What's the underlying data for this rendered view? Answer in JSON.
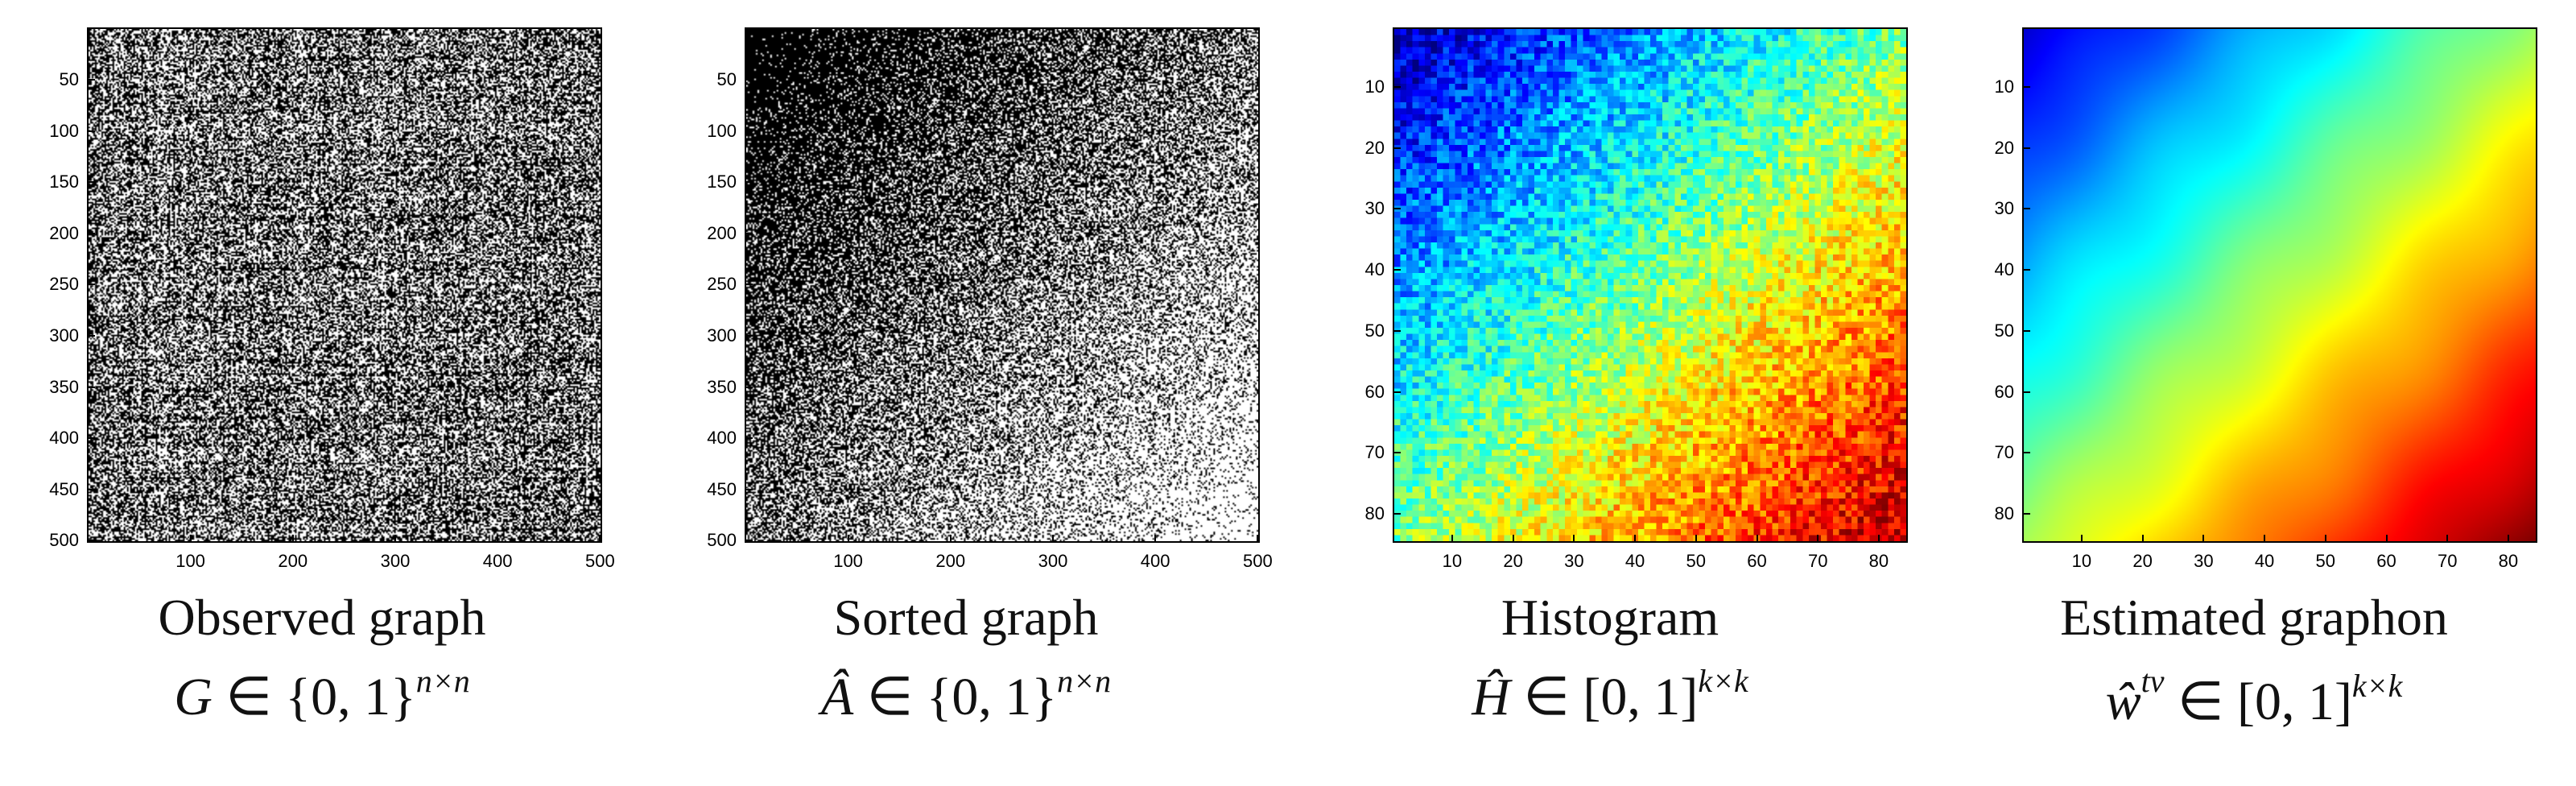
{
  "panels": [
    {
      "caption": "Observed graph",
      "formula_var": "G",
      "formula_rel": " ∈ {0, 1}",
      "formula_sup": "n×n",
      "yticks": [
        "50",
        "100",
        "150",
        "200",
        "250",
        "300",
        "350",
        "400",
        "450",
        "500"
      ],
      "xticks": [
        "100",
        "200",
        "300",
        "400",
        "500"
      ],
      "axis_max": 500,
      "colormap": "gray",
      "pattern": "random-uniform"
    },
    {
      "caption": "Sorted graph",
      "formula_var": "Â",
      "formula_rel": " ∈ {0, 1}",
      "formula_sup": "n×n",
      "yticks": [
        "50",
        "100",
        "150",
        "200",
        "250",
        "300",
        "350",
        "400",
        "450",
        "500"
      ],
      "xticks": [
        "100",
        "200",
        "300",
        "400",
        "500"
      ],
      "axis_max": 500,
      "colormap": "gray",
      "pattern": "diagonal-gradient"
    },
    {
      "caption": "Histogram",
      "formula_var": "Ĥ",
      "formula_rel": " ∈ [0, 1]",
      "formula_sup": "k×k",
      "yticks": [
        "10",
        "20",
        "30",
        "40",
        "50",
        "60",
        "70",
        "80"
      ],
      "xticks": [
        "10",
        "20",
        "30",
        "40",
        "50",
        "60",
        "70",
        "80"
      ],
      "axis_max": 84,
      "colormap": "jet",
      "pattern": "noisy-gradient"
    },
    {
      "caption": "Estimated graphon",
      "formula_var": "ŵ",
      "formula_var_sup": "tv",
      "formula_rel": " ∈ [0, 1]",
      "formula_sup": "k×k",
      "yticks": [
        "10",
        "20",
        "30",
        "40",
        "50",
        "60",
        "70",
        "80"
      ],
      "xticks": [
        "10",
        "20",
        "30",
        "40",
        "50",
        "60",
        "70",
        "80"
      ],
      "axis_max": 84,
      "colormap": "jet",
      "pattern": "smooth-gradient"
    }
  ]
}
